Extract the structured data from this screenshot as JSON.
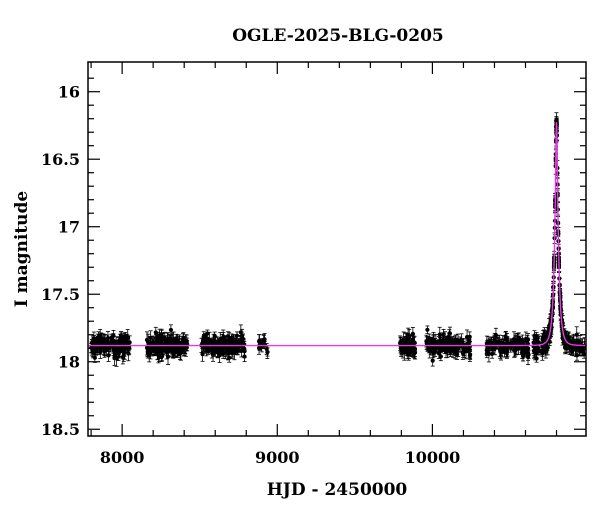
{
  "chart_data": {
    "type": "scatter",
    "title": "OGLE-2025-BLG-0205",
    "xlabel": "HJD - 2450000",
    "ylabel": "I magnitude",
    "xlim": [
      7780,
      10990
    ],
    "ylim": [
      18.55,
      15.78
    ],
    "y_inverted": true,
    "grid": false,
    "x_ticks": [
      8000,
      9000,
      10000
    ],
    "x_tick_labels": [
      "8000",
      "9000",
      "10000"
    ],
    "y_ticks": [
      16,
      16.5,
      17,
      17.5,
      18,
      18.5
    ],
    "y_tick_labels": [
      "16",
      "16.5",
      "17",
      "17.5",
      "18",
      "18.5"
    ],
    "model": {
      "color": "#e23be2",
      "t0": 10800,
      "baseline_mag": 17.88,
      "peak_mag": 16.22,
      "tE": 25,
      "blending_fraction": 1.0
    },
    "observing_seasons": [
      {
        "start": 7800,
        "end": 8050,
        "n": 130
      },
      {
        "start": 8160,
        "end": 8420,
        "n": 140
      },
      {
        "start": 8510,
        "end": 8790,
        "n": 150
      },
      {
        "start": 8880,
        "end": 8940,
        "n": 15
      },
      {
        "start": 9790,
        "end": 9890,
        "n": 70
      },
      {
        "start": 9960,
        "end": 10250,
        "n": 130
      },
      {
        "start": 10350,
        "end": 10620,
        "n": 110
      },
      {
        "start": 10650,
        "end": 10985,
        "n": 260
      }
    ],
    "photometric_scatter": 0.035,
    "point_color": "#000000"
  }
}
